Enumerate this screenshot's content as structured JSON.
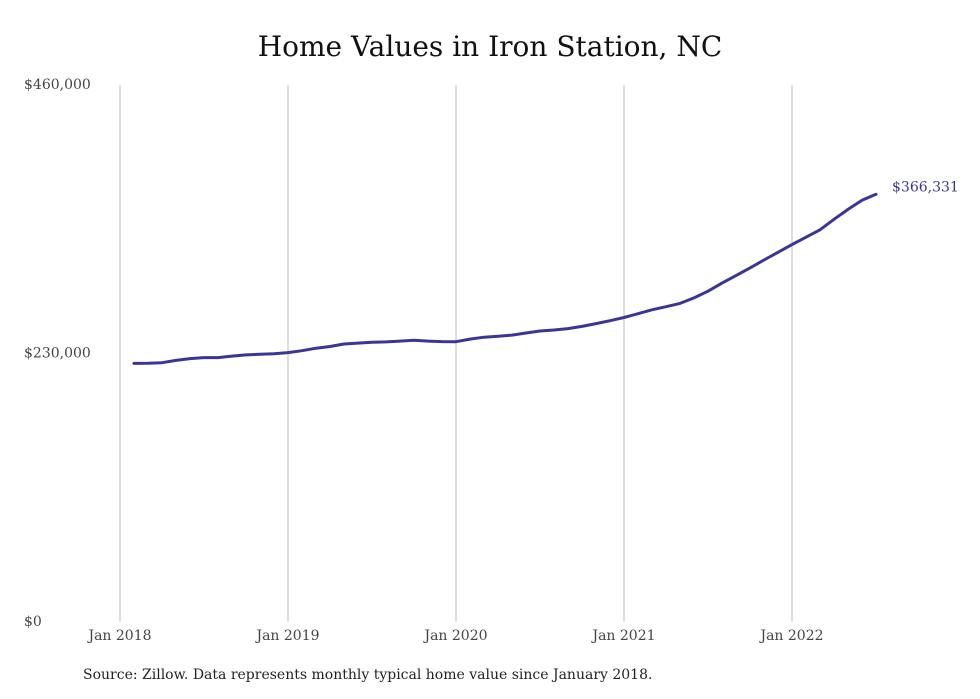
{
  "chart_data": {
    "type": "line",
    "title": "Home Values in Iron Station, NC",
    "xlabel": "",
    "ylabel": "",
    "y_ticks": [
      "$0",
      "$230,000",
      "$460,000"
    ],
    "y_tick_values": [
      0,
      230000,
      460000
    ],
    "x_ticks": [
      "Jan 2018",
      "Jan 2019",
      "Jan 2020",
      "Jan 2021",
      "Jan 2022"
    ],
    "x_tick_values": [
      "2018-01",
      "2019-01",
      "2020-01",
      "2021-01",
      "2022-01"
    ],
    "ylim": [
      0,
      460000
    ],
    "xlim": [
      "2018-01",
      "2022-07"
    ],
    "grid": "vertical",
    "line_color": "#3a3597",
    "end_label": "$366,331",
    "series": [
      {
        "x": [
          "2018-02",
          "2018-03",
          "2018-04",
          "2018-05",
          "2018-06",
          "2018-07",
          "2018-08",
          "2018-09",
          "2018-10",
          "2018-11",
          "2018-12",
          "2019-01",
          "2019-02",
          "2019-03",
          "2019-04",
          "2019-05",
          "2019-06",
          "2019-07",
          "2019-08",
          "2019-09",
          "2019-10",
          "2019-11",
          "2019-12",
          "2020-01",
          "2020-02",
          "2020-03",
          "2020-04",
          "2020-05",
          "2020-06",
          "2020-07",
          "2020-08",
          "2020-09",
          "2020-10",
          "2020-11",
          "2020-12",
          "2021-01",
          "2021-02",
          "2021-03",
          "2021-04",
          "2021-05",
          "2021-06",
          "2021-07",
          "2021-08",
          "2021-09",
          "2021-10",
          "2021-11",
          "2021-12",
          "2022-01",
          "2022-02",
          "2022-03",
          "2022-04",
          "2022-05",
          "2022-06",
          "2022-07"
        ],
        "values": [
          221500,
          221600,
          222100,
          224100,
          225600,
          226500,
          226500,
          227800,
          228800,
          229400,
          229800,
          230800,
          232400,
          234500,
          236000,
          238100,
          238900,
          239600,
          239900,
          240600,
          241300,
          240600,
          240200,
          240100,
          242300,
          244000,
          244800,
          245800,
          247600,
          249300,
          250100,
          251300,
          253200,
          255600,
          258100,
          260800,
          264100,
          267400,
          270100,
          272900,
          277600,
          283400,
          290300,
          296700,
          303300,
          310100,
          316700,
          323300,
          329600,
          336000,
          345000,
          353400,
          361200,
          366331
        ]
      }
    ]
  },
  "source_note": "Source: Zillow. Data represents monthly typical home value since January 2018."
}
